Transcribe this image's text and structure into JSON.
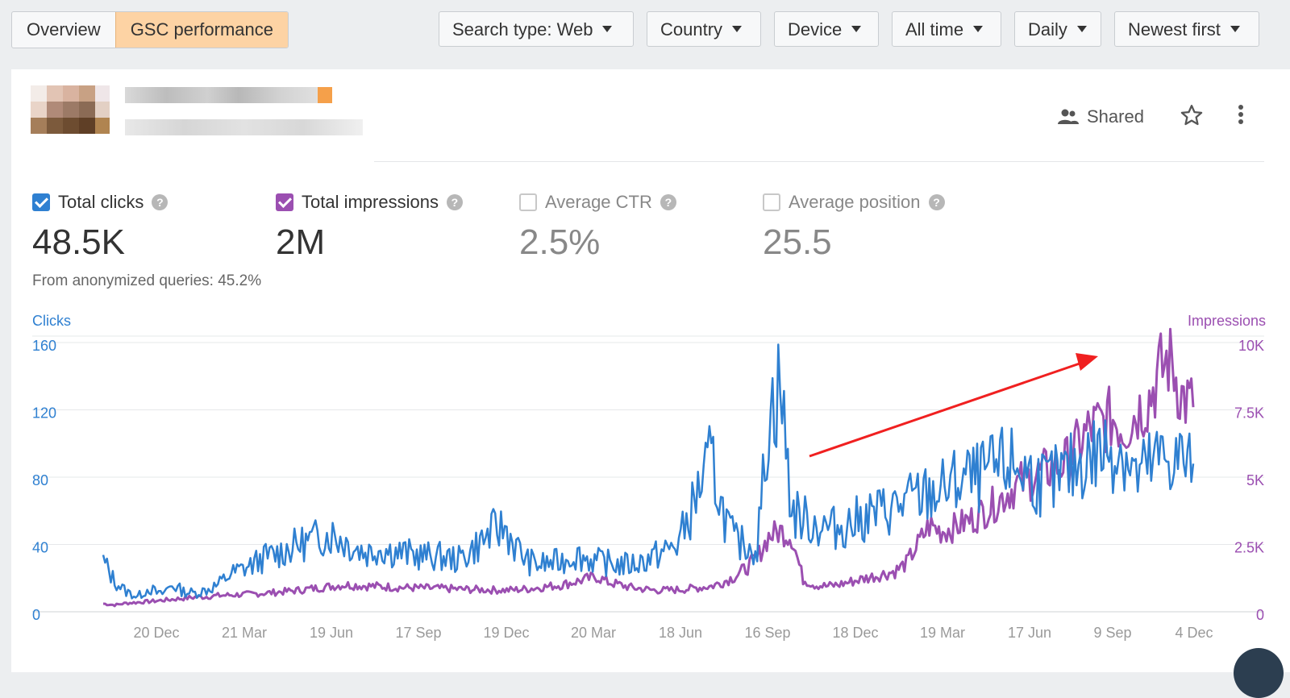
{
  "tabs": [
    {
      "label": "Overview",
      "active": false
    },
    {
      "label": "GSC performance",
      "active": true
    }
  ],
  "filters": [
    {
      "label": "Search type: Web"
    },
    {
      "label": "Country"
    },
    {
      "label": "Device"
    },
    {
      "label": "All time"
    },
    {
      "label": "Daily"
    },
    {
      "label": "Newest first"
    }
  ],
  "header": {
    "shared_label": "Shared"
  },
  "metrics": [
    {
      "label": "Total clicks",
      "value": "48.5K",
      "checked": true,
      "color": "#2f80d1"
    },
    {
      "label": "Total impressions",
      "value": "2M",
      "checked": true,
      "color": "#9b4fb1"
    },
    {
      "label": "Average CTR",
      "value": "2.5%",
      "checked": false
    },
    {
      "label": "Average position",
      "value": "25.5",
      "checked": false
    }
  ],
  "anonymized_note": "From anonymized queries: 45.2%",
  "chart_data": {
    "type": "line",
    "left_axis_label": "Clicks",
    "right_axis_label": "Impressions",
    "left_ticks": [
      "0",
      "40",
      "80",
      "120",
      "160"
    ],
    "right_ticks": [
      "0",
      "2.5K",
      "5K",
      "7.5K",
      "10K"
    ],
    "x_ticks": [
      "20 Dec",
      "21 Mar",
      "19 Jun",
      "17 Sep",
      "19 Dec",
      "20 Mar",
      "18 Jun",
      "16 Sep",
      "18 Dec",
      "19 Mar",
      "17 Jun",
      "9 Sep",
      "4 Dec"
    ],
    "ylim_left": [
      0,
      160
    ],
    "ylim_right": [
      0,
      10000
    ],
    "grid": true,
    "annotation": "red arrow pointing up-right over recent trend",
    "series": [
      {
        "name": "Clicks",
        "axis": "left",
        "color": "#2f80d1",
        "values": [
          30,
          18,
          12,
          9,
          14,
          10,
          16,
          12,
          11,
          13,
          16,
          22,
          25,
          28,
          32,
          34,
          37,
          40,
          42,
          45,
          46,
          42,
          38,
          35,
          38,
          36,
          35,
          34,
          33,
          33,
          32,
          31,
          36,
          42,
          48,
          50,
          38,
          30,
          28,
          29,
          30,
          34,
          32,
          30,
          29,
          28,
          28,
          30,
          33,
          36,
          40,
          55,
          75,
          90,
          60,
          42,
          40,
          38,
          115,
          135,
          60,
          55,
          52,
          50,
          50,
          52,
          55,
          58,
          60,
          62,
          65,
          68,
          70,
          72,
          75,
          80,
          78,
          82,
          85,
          88,
          85,
          80,
          76,
          78,
          82,
          88,
          92,
          95,
          97,
          96,
          80,
          85,
          90,
          92,
          90,
          88
        ]
      },
      {
        "name": "Impressions",
        "axis": "right",
        "color": "#9b4fb1",
        "values": [
          300,
          250,
          320,
          350,
          380,
          420,
          460,
          500,
          540,
          560,
          600,
          620,
          640,
          660,
          690,
          720,
          760,
          800,
          850,
          900,
          950,
          1000,
          980,
          960,
          940,
          920,
          900,
          890,
          880,
          870,
          860,
          840,
          830,
          820,
          810,
          800,
          820,
          850,
          900,
          950,
          1000,
          1100,
          1200,
          1300,
          1100,
          1000,
          900,
          850,
          800,
          800,
          820,
          850,
          900,
          950,
          1100,
          1300,
          1600,
          2000,
          2800,
          3000,
          2800,
          1200,
          1000,
          950,
          1000,
          1100,
          1200,
          1300,
          1400,
          1500,
          1800,
          2500,
          3200,
          3000,
          3100,
          3300,
          3500,
          3800,
          4100,
          4500,
          4800,
          5000,
          5200,
          5400,
          5600,
          6200,
          6800,
          7000,
          7200,
          6800,
          7400,
          7800,
          8800,
          9500,
          8000,
          7600
        ]
      }
    ]
  }
}
